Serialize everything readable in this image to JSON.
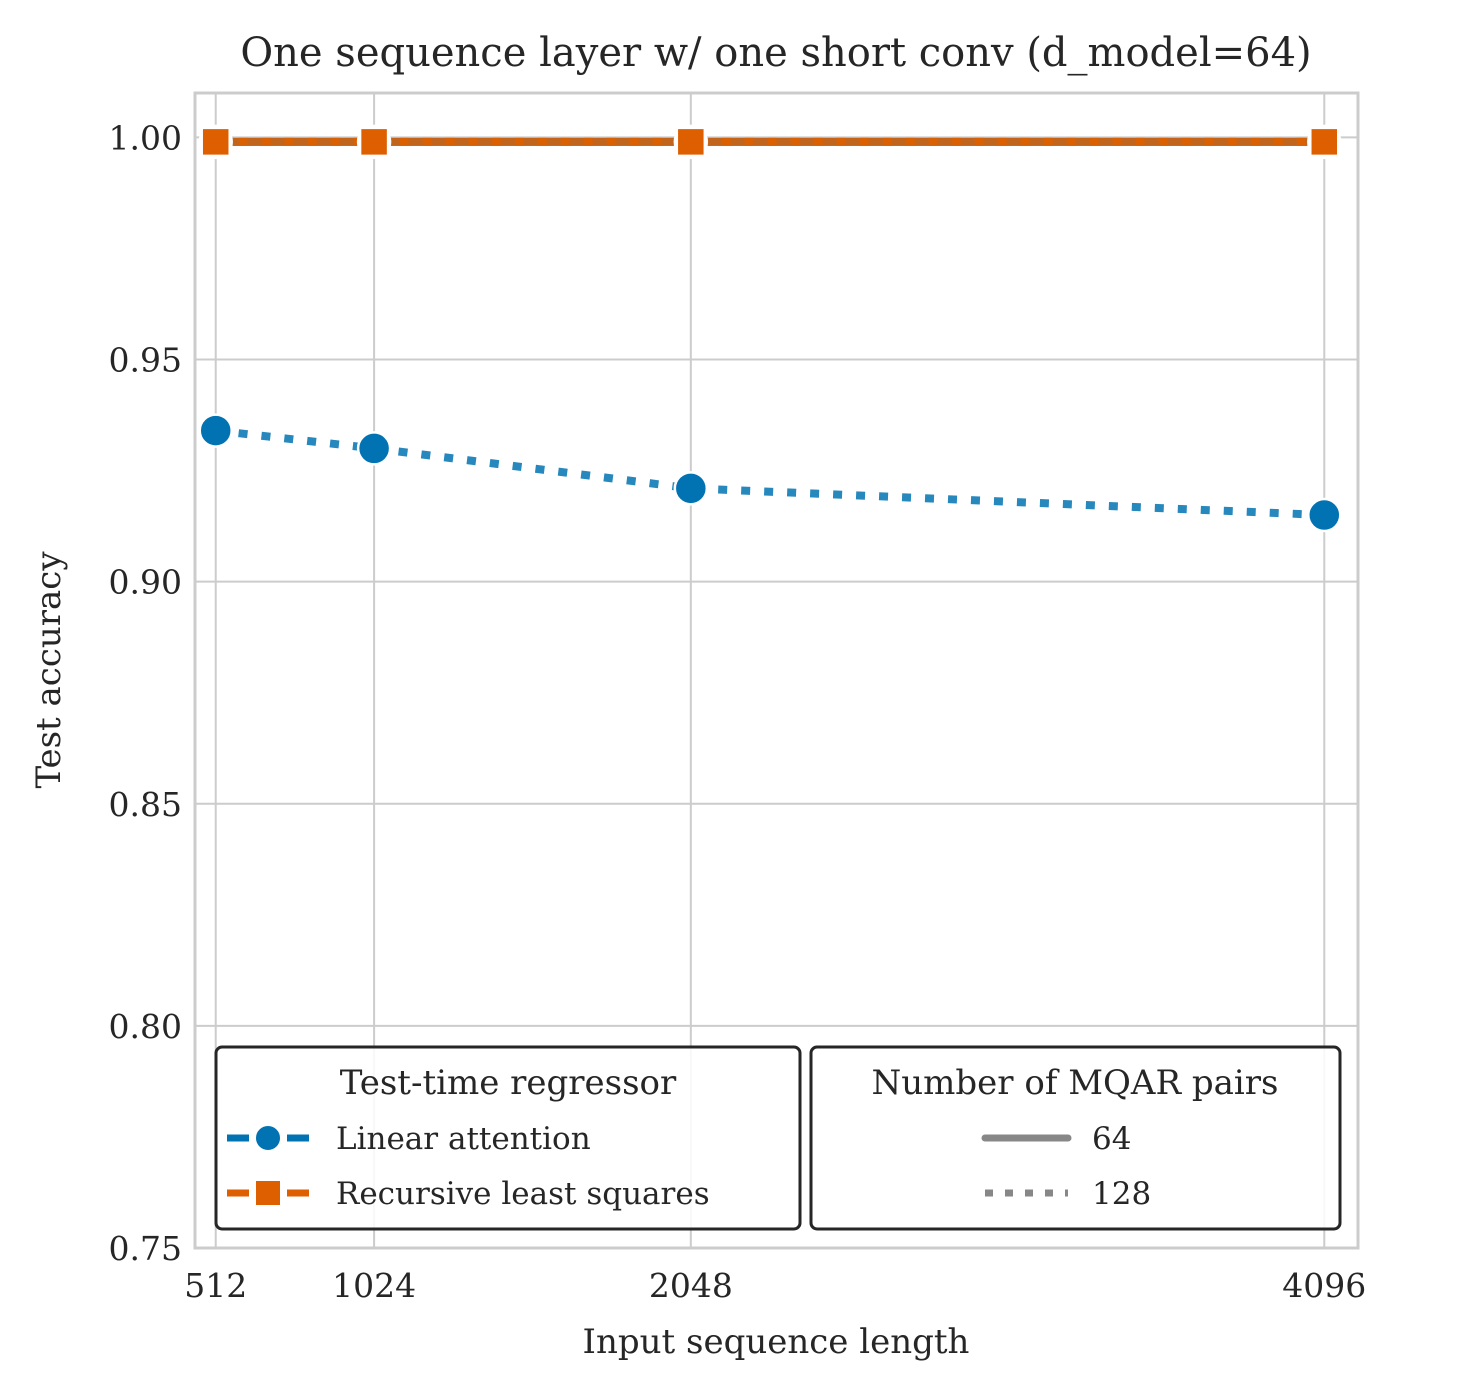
{
  "chart_data": {
    "type": "line",
    "title": "One sequence layer w/ one short conv (d_model=64)",
    "xlabel": "Input sequence length",
    "ylabel": "Test accuracy",
    "x": [
      512,
      1024,
      2048,
      4096
    ],
    "xticks": [
      "512",
      "1024",
      "2048",
      "4096"
    ],
    "ylim": [
      0.75,
      1.01
    ],
    "yticks": [
      "0.75",
      "0.80",
      "0.85",
      "0.90",
      "0.95",
      "1.00"
    ],
    "grid": true,
    "series": [
      {
        "regressor": "Linear attention",
        "pairs": "64",
        "values": [
          0.999,
          0.999,
          0.999,
          0.999
        ],
        "color": "#0173b2",
        "marker": "circle",
        "linestyle": "solid"
      },
      {
        "regressor": "Linear attention",
        "pairs": "128",
        "values": [
          0.934,
          0.93,
          0.921,
          0.915
        ],
        "color": "#0173b2",
        "marker": "circle",
        "linestyle": "dotted"
      },
      {
        "regressor": "Recursive least squares",
        "pairs": "64",
        "values": [
          0.999,
          0.999,
          0.999,
          0.999
        ],
        "color": "#de5f00",
        "marker": "square",
        "linestyle": "solid"
      },
      {
        "regressor": "Recursive least squares",
        "pairs": "128",
        "values": [
          0.999,
          0.999,
          0.999,
          0.999
        ],
        "color": "#de5f00",
        "marker": "square",
        "linestyle": "dotted"
      }
    ],
    "legends": [
      {
        "title": "Test-time regressor",
        "entries": [
          {
            "label": "Linear attention",
            "color": "#0173b2",
            "marker": "circle"
          },
          {
            "label": "Recursive least squares",
            "color": "#de5f00",
            "marker": "square"
          }
        ]
      },
      {
        "title": "Number of MQAR pairs",
        "entries": [
          {
            "label": "64",
            "color": "#878787",
            "linestyle": "solid"
          },
          {
            "label": "128",
            "color": "#878787",
            "linestyle": "dotted"
          }
        ]
      }
    ],
    "legend_placement": "lower"
  }
}
